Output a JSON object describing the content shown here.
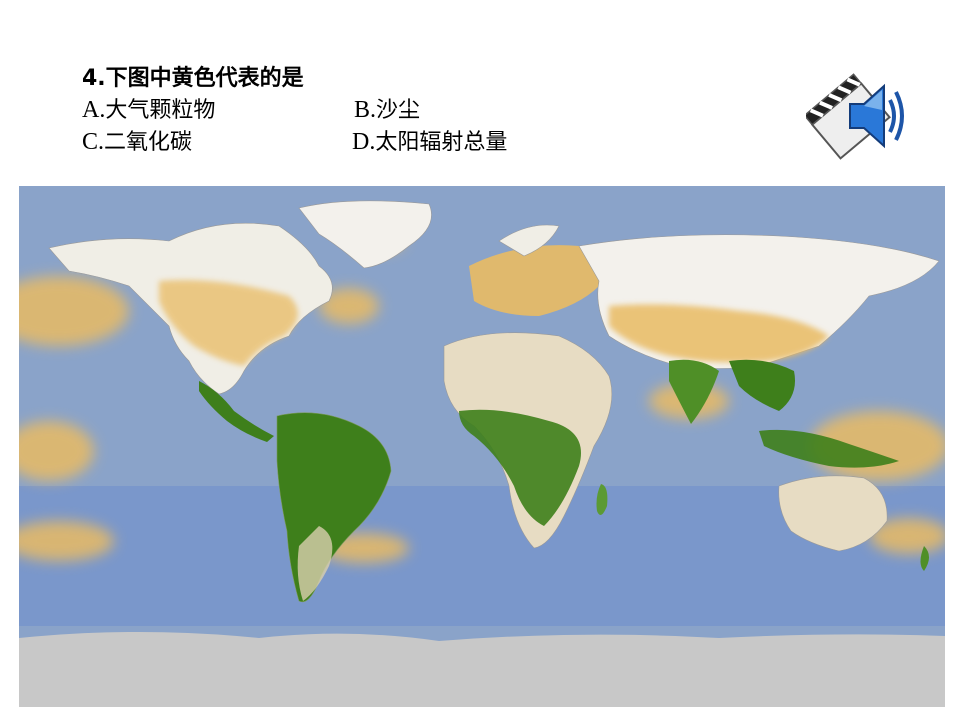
{
  "question": {
    "title": "4.下图中黄色代表的是",
    "options": [
      {
        "letter": "A.",
        "text": "大气颗粒物"
      },
      {
        "letter": "B.",
        "text": "沙尘"
      },
      {
        "letter": "C.",
        "text": "二氧化碳"
      },
      {
        "letter": "D.",
        "text": "太阳辐射总量"
      }
    ]
  },
  "icons": {
    "speaker": "speaker-clapperboard-icon"
  },
  "map": {
    "colors": {
      "ocean": "#7f9bcb",
      "ice": "#c9c9c9",
      "yellow": "#e9bb63",
      "green": "#3e7f1b",
      "desert": "#e7dcc3",
      "snow": "#f3f1ec"
    }
  }
}
